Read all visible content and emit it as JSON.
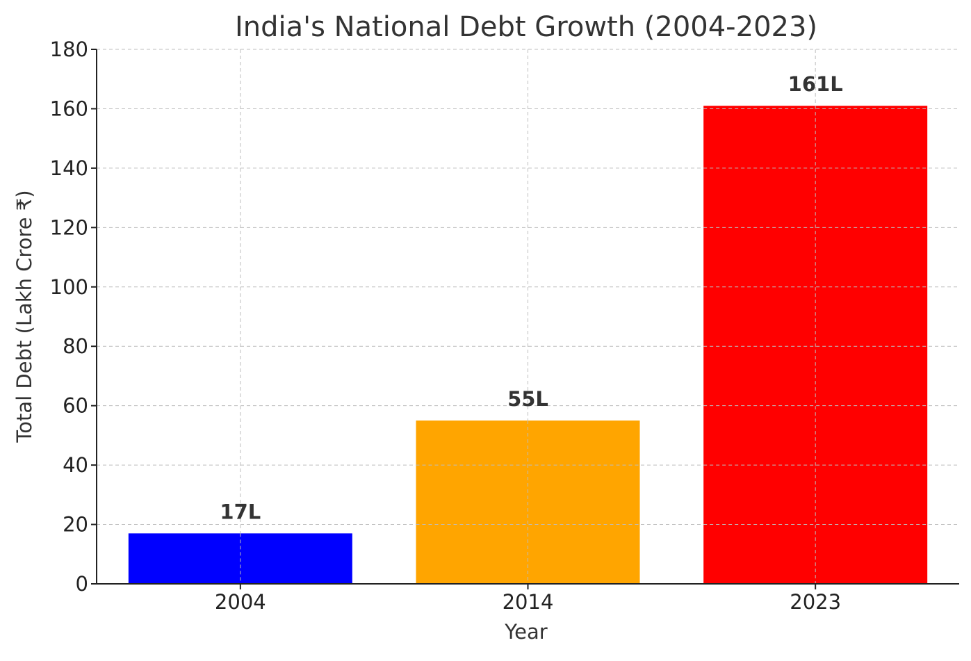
{
  "chart_data": {
    "type": "bar",
    "title": "India's National Debt Growth (2004-2023)",
    "xlabel": "Year",
    "ylabel": "Total Debt (Lakh Crore ₹)",
    "categories": [
      "2004",
      "2014",
      "2023"
    ],
    "values": [
      17,
      55,
      161
    ],
    "bar_labels": [
      "17L",
      "55L",
      "161L"
    ],
    "colors": [
      "#0000ff",
      "#ffa500",
      "#ff0000"
    ],
    "ylim": [
      0,
      180
    ],
    "yticks": [
      0,
      20,
      40,
      60,
      80,
      100,
      120,
      140,
      160,
      180
    ],
    "grid": true,
    "legend": "none"
  }
}
